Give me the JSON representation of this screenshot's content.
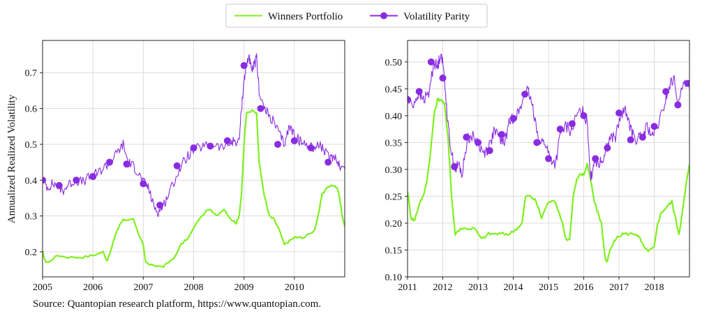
{
  "legend": {
    "items": [
      {
        "name": "Winners Portfolio",
        "color": "#7ef01e",
        "marker": "none"
      },
      {
        "name": "Volatility Parity",
        "color": "#8a2be2",
        "marker": "circle"
      }
    ],
    "placement": "top-center"
  },
  "source_note": "Source: Quantopian research platform, https://www.quantopian.com.",
  "chart_data": [
    {
      "type": "line",
      "title": "",
      "xlabel": "",
      "ylabel": "Annualized Realized Volatility",
      "xlim": [
        2005.0,
        2011.0
      ],
      "ylim": [
        0.13,
        0.79
      ],
      "xticks": [
        2005,
        2006,
        2007,
        2008,
        2009,
        2010
      ],
      "xtick_labels": [
        "2005",
        "2006",
        "2007",
        "2008",
        "2009",
        "2010"
      ],
      "yticks": [
        0.2,
        0.3,
        0.4,
        0.5,
        0.6,
        0.7
      ],
      "ytick_labels": [
        "0.2",
        "0.3",
        "0.4",
        "0.5",
        "0.6",
        "0.7"
      ],
      "grid": true,
      "series": [
        {
          "name": "Winners Portfolio",
          "color": "#7ef01e",
          "x": [
            2005.0,
            2005.05,
            2005.1,
            2005.3,
            2005.5,
            2005.8,
            2006.0,
            2006.2,
            2006.28,
            2006.35,
            2006.45,
            2006.55,
            2006.6,
            2006.8,
            2006.9,
            2007.0,
            2007.05,
            2007.2,
            2007.4,
            2007.6,
            2007.75,
            2007.9,
            2008.1,
            2008.3,
            2008.45,
            2008.6,
            2008.75,
            2008.85,
            2008.9,
            2008.95,
            2009.0,
            2009.05,
            2009.2,
            2009.25,
            2009.3,
            2009.4,
            2009.5,
            2009.6,
            2009.7,
            2009.8,
            2009.9,
            2010.0,
            2010.1,
            2010.2,
            2010.4,
            2010.5,
            2010.55,
            2010.65,
            2010.75,
            2010.85,
            2010.9,
            2010.95,
            2011.0
          ],
          "y": [
            0.2,
            0.175,
            0.17,
            0.19,
            0.185,
            0.185,
            0.19,
            0.2,
            0.175,
            0.2,
            0.25,
            0.28,
            0.29,
            0.29,
            0.25,
            0.22,
            0.17,
            0.16,
            0.16,
            0.18,
            0.22,
            0.24,
            0.29,
            0.32,
            0.3,
            0.32,
            0.29,
            0.28,
            0.3,
            0.36,
            0.5,
            0.59,
            0.595,
            0.585,
            0.45,
            0.36,
            0.3,
            0.29,
            0.26,
            0.22,
            0.23,
            0.24,
            0.24,
            0.24,
            0.26,
            0.32,
            0.36,
            0.38,
            0.385,
            0.38,
            0.35,
            0.3,
            0.27
          ]
        },
        {
          "name": "Volatility Parity",
          "color": "#8a2be2",
          "x": [
            2005.0,
            2005.1,
            2005.2,
            2005.3,
            2005.4,
            2005.5,
            2005.65,
            2005.8,
            2005.95,
            2006.1,
            2006.25,
            2006.35,
            2006.5,
            2006.6,
            2006.7,
            2006.8,
            2006.9,
            2007.0,
            2007.1,
            2007.2,
            2007.3,
            2007.4,
            2007.5,
            2007.65,
            2007.8,
            2007.95,
            2008.1,
            2008.25,
            2008.4,
            2008.55,
            2008.7,
            2008.8,
            2008.9,
            2008.95,
            2009.0,
            2009.05,
            2009.1,
            2009.15,
            2009.2,
            2009.25,
            2009.3,
            2009.4,
            2009.5,
            2009.6,
            2009.7,
            2009.8,
            2009.9,
            2010.0,
            2010.1,
            2010.2,
            2010.3,
            2010.4,
            2010.5,
            2010.6,
            2010.7,
            2010.8,
            2010.9,
            2011.0
          ],
          "y": [
            0.4,
            0.38,
            0.39,
            0.385,
            0.37,
            0.385,
            0.4,
            0.395,
            0.41,
            0.42,
            0.44,
            0.45,
            0.48,
            0.5,
            0.45,
            0.44,
            0.42,
            0.395,
            0.38,
            0.33,
            0.31,
            0.33,
            0.36,
            0.41,
            0.45,
            0.48,
            0.49,
            0.495,
            0.5,
            0.49,
            0.5,
            0.51,
            0.505,
            0.6,
            0.68,
            0.72,
            0.75,
            0.7,
            0.72,
            0.74,
            0.65,
            0.6,
            0.58,
            0.56,
            0.53,
            0.5,
            0.55,
            0.53,
            0.51,
            0.5,
            0.5,
            0.49,
            0.5,
            0.48,
            0.46,
            0.47,
            0.44,
            0.43
          ],
          "markers_x": [
            2005.0,
            2005.33,
            2005.67,
            2006.0,
            2006.33,
            2006.67,
            2007.0,
            2007.33,
            2007.67,
            2008.0,
            2008.33,
            2008.67,
            2009.0,
            2009.33,
            2009.67,
            2010.0,
            2010.33,
            2010.67
          ],
          "markers_y": [
            0.4,
            0.385,
            0.4,
            0.41,
            0.45,
            0.445,
            0.39,
            0.33,
            0.44,
            0.49,
            0.495,
            0.51,
            0.72,
            0.6,
            0.5,
            0.51,
            0.49,
            0.45
          ]
        }
      ]
    },
    {
      "type": "line",
      "title": "",
      "xlabel": "",
      "ylabel": "",
      "xlim": [
        2011.0,
        2019.0
      ],
      "ylim": [
        0.1,
        0.54
      ],
      "xticks": [
        2011,
        2012,
        2013,
        2014,
        2015,
        2016,
        2017,
        2018
      ],
      "xtick_labels": [
        "2011",
        "2012",
        "2013",
        "2014",
        "2015",
        "2016",
        "2017",
        "2018"
      ],
      "yticks": [
        0.1,
        0.15,
        0.2,
        0.25,
        0.3,
        0.35,
        0.4,
        0.45,
        0.5
      ],
      "ytick_labels": [
        "0.10",
        "0.15",
        "0.20",
        "0.25",
        "0.30",
        "0.35",
        "0.40",
        "0.45",
        "0.50"
      ],
      "grid": true,
      "series": [
        {
          "name": "Winners Portfolio",
          "color": "#7ef01e",
          "x": [
            2011.0,
            2011.1,
            2011.2,
            2011.35,
            2011.45,
            2011.55,
            2011.65,
            2011.75,
            2011.85,
            2011.95,
            2012.05,
            2012.15,
            2012.25,
            2012.35,
            2012.5,
            2012.7,
            2012.9,
            2013.1,
            2013.3,
            2013.5,
            2013.7,
            2013.9,
            2014.1,
            2014.25,
            2014.35,
            2014.5,
            2014.65,
            2014.8,
            2015.0,
            2015.2,
            2015.35,
            2015.5,
            2015.6,
            2015.7,
            2015.8,
            2015.9,
            2016.0,
            2016.1,
            2016.2,
            2016.3,
            2016.4,
            2016.5,
            2016.6,
            2016.65,
            2016.75,
            2016.9,
            2017.1,
            2017.3,
            2017.5,
            2017.6,
            2017.75,
            2017.9,
            2018.0,
            2018.1,
            2018.2,
            2018.35,
            2018.5,
            2018.6,
            2018.7,
            2018.8,
            2018.9,
            2019.0
          ],
          "y": [
            0.26,
            0.21,
            0.205,
            0.24,
            0.25,
            0.28,
            0.33,
            0.4,
            0.43,
            0.43,
            0.42,
            0.36,
            0.25,
            0.18,
            0.19,
            0.19,
            0.19,
            0.17,
            0.18,
            0.18,
            0.18,
            0.18,
            0.19,
            0.2,
            0.25,
            0.25,
            0.24,
            0.21,
            0.24,
            0.24,
            0.21,
            0.17,
            0.17,
            0.25,
            0.28,
            0.29,
            0.29,
            0.31,
            0.28,
            0.24,
            0.22,
            0.2,
            0.14,
            0.125,
            0.15,
            0.17,
            0.18,
            0.18,
            0.18,
            0.17,
            0.15,
            0.15,
            0.155,
            0.2,
            0.22,
            0.23,
            0.24,
            0.21,
            0.18,
            0.22,
            0.27,
            0.31
          ]
        },
        {
          "name": "Volatility Parity",
          "color": "#8a2be2",
          "x": [
            2011.0,
            2011.15,
            2011.3,
            2011.45,
            2011.6,
            2011.75,
            2011.85,
            2011.95,
            2012.05,
            2012.15,
            2012.25,
            2012.35,
            2012.45,
            2012.55,
            2012.7,
            2012.85,
            2013.0,
            2013.15,
            2013.3,
            2013.45,
            2013.6,
            2013.75,
            2013.9,
            2014.05,
            2014.2,
            2014.35,
            2014.45,
            2014.6,
            2014.75,
            2014.9,
            2015.05,
            2015.2,
            2015.35,
            2015.5,
            2015.65,
            2015.8,
            2015.95,
            2016.1,
            2016.2,
            2016.3,
            2016.45,
            2016.6,
            2016.75,
            2016.9,
            2017.05,
            2017.2,
            2017.35,
            2017.5,
            2017.65,
            2017.8,
            2017.95,
            2018.1,
            2018.25,
            2018.4,
            2018.55,
            2018.7,
            2018.85,
            2019.0
          ],
          "y": [
            0.43,
            0.42,
            0.44,
            0.43,
            0.44,
            0.5,
            0.49,
            0.52,
            0.47,
            0.38,
            0.33,
            0.3,
            0.31,
            0.29,
            0.36,
            0.36,
            0.35,
            0.33,
            0.34,
            0.37,
            0.36,
            0.35,
            0.39,
            0.4,
            0.41,
            0.45,
            0.44,
            0.4,
            0.35,
            0.35,
            0.32,
            0.31,
            0.37,
            0.38,
            0.37,
            0.4,
            0.41,
            0.39,
            0.28,
            0.32,
            0.31,
            0.33,
            0.36,
            0.36,
            0.4,
            0.41,
            0.37,
            0.355,
            0.36,
            0.38,
            0.36,
            0.38,
            0.41,
            0.45,
            0.47,
            0.42,
            0.47,
            0.45
          ],
          "markers_x": [
            2011.0,
            2011.33,
            2011.67,
            2012.0,
            2012.33,
            2012.67,
            2013.0,
            2013.33,
            2013.67,
            2014.0,
            2014.33,
            2014.67,
            2015.0,
            2015.33,
            2015.67,
            2016.0,
            2016.33,
            2016.67,
            2017.0,
            2017.33,
            2017.67,
            2018.0,
            2018.33,
            2018.67,
            2018.95
          ],
          "markers_y": [
            0.43,
            0.445,
            0.5,
            0.47,
            0.305,
            0.36,
            0.35,
            0.335,
            0.365,
            0.395,
            0.44,
            0.35,
            0.32,
            0.375,
            0.385,
            0.4,
            0.32,
            0.34,
            0.405,
            0.355,
            0.36,
            0.38,
            0.445,
            0.42,
            0.46
          ]
        }
      ]
    }
  ]
}
